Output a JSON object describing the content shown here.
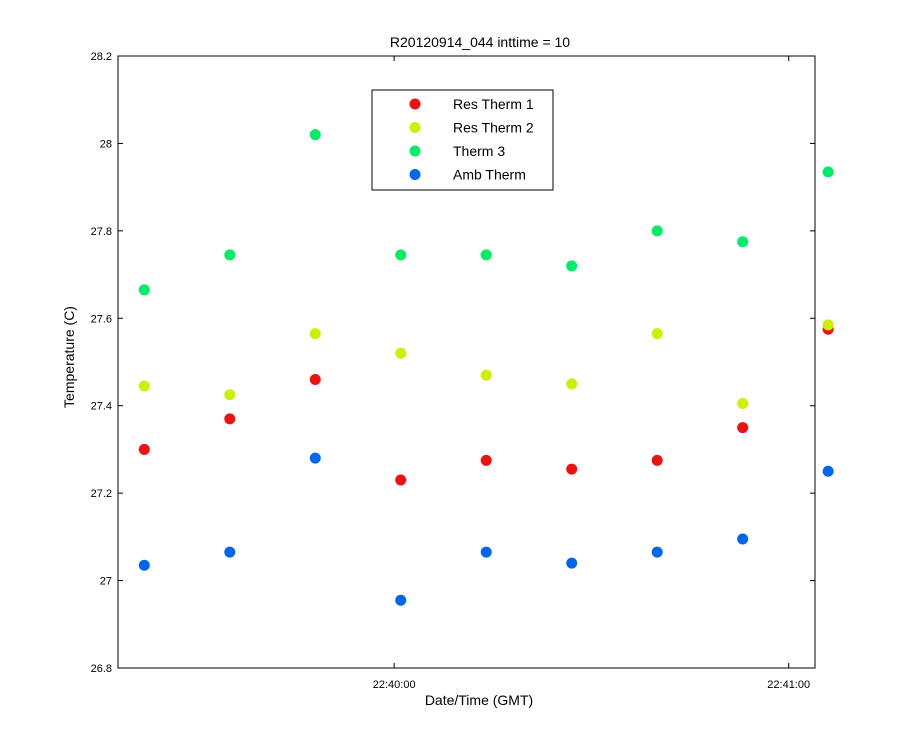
{
  "chart_data": {
    "type": "scatter",
    "title": "R20120914_044 inttime = 10",
    "xlabel": "Date/Time (GMT)",
    "ylabel": "Temperature (C)",
    "ylim": [
      26.8,
      28.2
    ],
    "y_ticks": [
      "26.8",
      "27",
      "27.2",
      "27.4",
      "27.6",
      "27.8",
      "28",
      "28.2"
    ],
    "xlim": [
      "22:39:18",
      "22:41:04"
    ],
    "x_ticks": [
      {
        "t": "22:40:00",
        "label": "22:40:00"
      },
      {
        "t": "22:41:00",
        "label": "22:41:00"
      }
    ],
    "x": [
      "22:39:22",
      "22:39:35",
      "22:39:48",
      "22:40:01",
      "22:40:14",
      "22:40:27",
      "22:40:40",
      "22:40:53",
      "22:41:06"
    ],
    "legend": "top-center",
    "series": [
      {
        "name": "Res Therm 1",
        "color": "#ee1111",
        "values": [
          27.3,
          27.37,
          27.46,
          27.23,
          27.275,
          27.255,
          27.275,
          27.35,
          27.575
        ]
      },
      {
        "name": "Res Therm 2",
        "color": "#ccf000",
        "values": [
          27.445,
          27.425,
          27.565,
          27.52,
          27.47,
          27.45,
          27.565,
          27.405,
          27.585
        ]
      },
      {
        "name": "Therm 3",
        "color": "#00ee66",
        "values": [
          27.665,
          27.745,
          28.02,
          27.745,
          27.745,
          27.72,
          27.8,
          27.775,
          27.935
        ]
      },
      {
        "name": "Amb Therm",
        "color": "#0066ee",
        "values": [
          27.035,
          27.065,
          27.28,
          26.955,
          27.065,
          27.04,
          27.065,
          27.095,
          27.25
        ]
      }
    ]
  }
}
